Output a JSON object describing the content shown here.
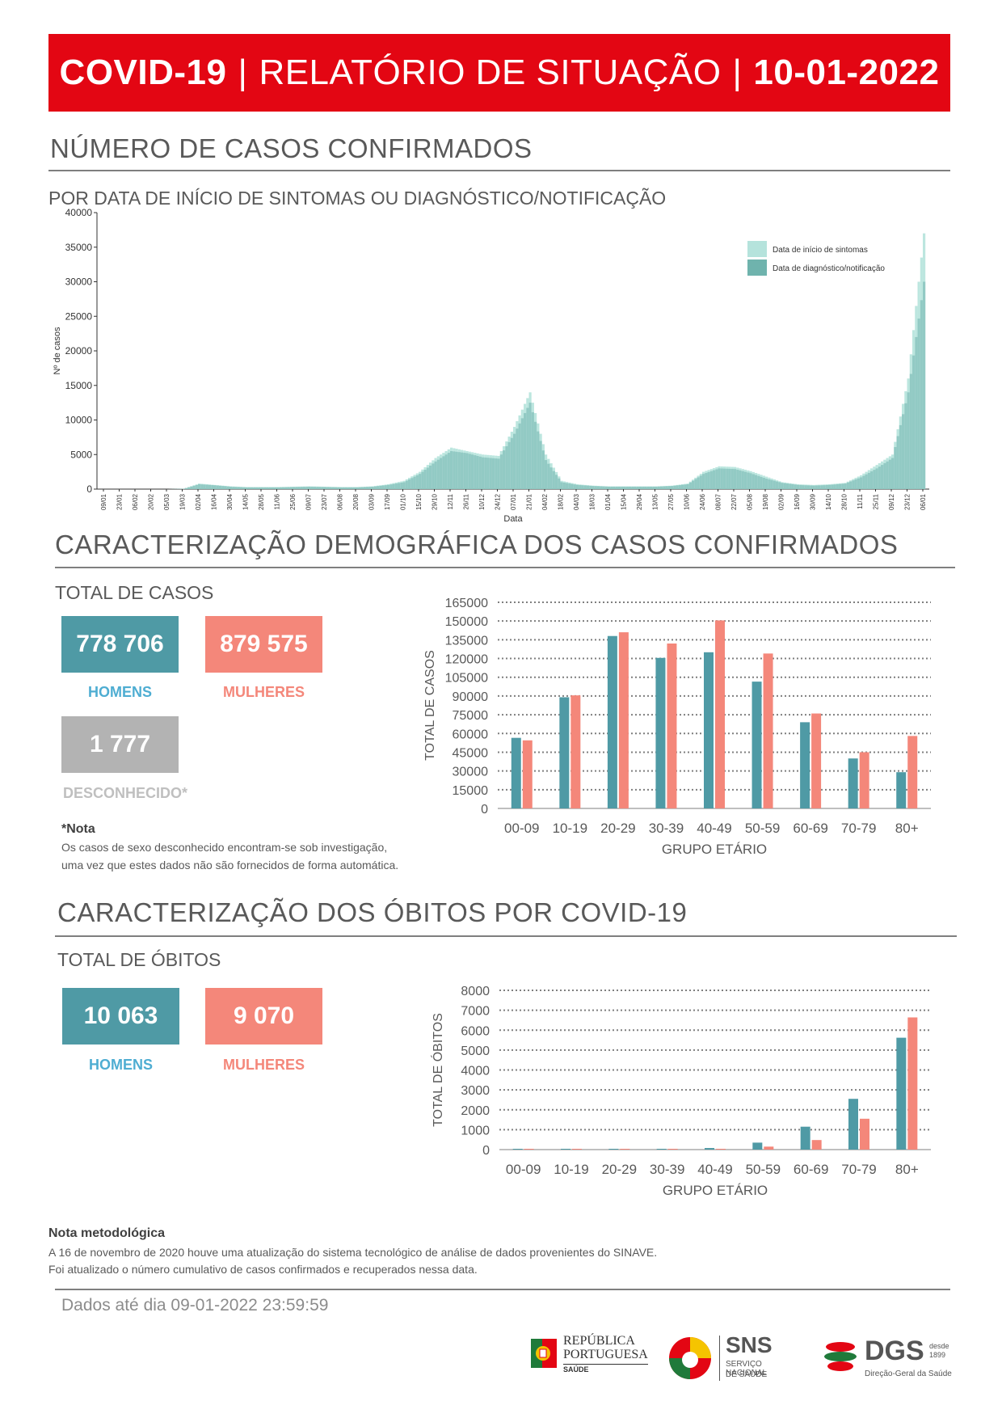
{
  "header": {
    "bold1": "COVID-19",
    "sep1": "|",
    "light": "RELATÓRIO DE SITUAÇÃO",
    "sep2": "|",
    "date": "10-01-2022"
  },
  "section1": {
    "title": "NÚMERO DE CASOS CONFIRMADOS",
    "subtitle": "POR DATA DE INÍCIO DE SINTOMAS OU DIAGNÓSTICO/NOTIFICAÇÃO"
  },
  "section2": {
    "title": "CARACTERIZAÇÃO DEMOGRÁFICA DOS CASOS CONFIRMADOS",
    "total_label": "TOTAL DE CASOS",
    "men_value": "778 706",
    "men_label": "HOMENS",
    "women_value": "879 575",
    "women_label": "MULHERES",
    "unknown_value": "1 777",
    "unknown_label": "DESCONHECIDO*",
    "note_title": "*Nota",
    "note_line1": "Os casos de sexo desconhecido encontram-se sob investigação,",
    "note_line2": "uma vez que estes dados não são fornecidos de forma automática."
  },
  "section3": {
    "title": "CARACTERIZAÇÃO DOS ÓBITOS POR COVID-19",
    "total_label": "TOTAL DE ÓBITOS",
    "men_value": "10 063",
    "men_label": "HOMENS",
    "women_value": "9 070",
    "women_label": "MULHERES"
  },
  "methodology": {
    "title": "Nota metodológica",
    "line1": "A 16 de novembro de 2020 houve uma atualização do sistema tecnológico de análise de dados provenientes do SINAVE.",
    "line2": "Foi atualizado o número cumulativo de casos confirmados e recuperados nessa data."
  },
  "footer": {
    "data_until": "Dados até dia 09-01-2022 23:59:59",
    "logo1_line1": "REPÚBLICA",
    "logo1_line2": "PORTUGUESA",
    "logo1_line3": "SAÚDE",
    "logo2_title": "SNS",
    "logo2_line1": "SERVIÇO NACIONAL",
    "logo2_line2": "DE SAÚDE",
    "logo3_title": "DGS",
    "logo3_small1": "desde",
    "logo3_small2": "1899",
    "logo3_sub": "Direção-Geral da Saúde"
  },
  "colors": {
    "red": "#e30613",
    "men": "#4f9aa5",
    "women": "#f4877a",
    "unknown": "#b3b3b3",
    "men_label": "#4eadd2",
    "symptoms": "#b5e3dc",
    "diagnosis": "#6fb3ad"
  },
  "chart_data": [
    {
      "type": "area",
      "xlabel": "Data",
      "ylabel": "Nº de casos",
      "ylim": [
        0,
        40000
      ],
      "yticks": [
        "0",
        "5000",
        "10000",
        "15000",
        "20000",
        "25000",
        "30000",
        "35000",
        "40000"
      ],
      "xticks": [
        "09/01",
        "23/01",
        "06/02",
        "20/02",
        "05/03",
        "19/03",
        "02/04",
        "16/04",
        "30/04",
        "14/05",
        "28/05",
        "11/06",
        "25/06",
        "09/07",
        "23/07",
        "06/08",
        "20/08",
        "03/09",
        "17/09",
        "01/10",
        "15/10",
        "29/10",
        "12/11",
        "26/11",
        "10/12",
        "24/12",
        "07/01",
        "21/01",
        "04/02",
        "18/02",
        "04/03",
        "18/03",
        "01/04",
        "15/04",
        "29/04",
        "13/05",
        "27/05",
        "10/06",
        "24/06",
        "08/07",
        "22/07",
        "05/08",
        "19/08",
        "02/09",
        "16/09",
        "30/09",
        "14/10",
        "28/10",
        "11/11",
        "25/11",
        "09/12",
        "23/12",
        "06/01"
      ],
      "legend_position": "top-right",
      "series": [
        {
          "name": "Data de início de sintomas",
          "values": [
            0,
            0,
            0,
            0,
            0,
            50,
            800,
            600,
            400,
            300,
            300,
            300,
            350,
            400,
            350,
            300,
            300,
            400,
            700,
            1200,
            2500,
            4500,
            6000,
            5500,
            5000,
            4800,
            9000,
            14000,
            5000,
            1200,
            700,
            500,
            400,
            400,
            400,
            400,
            500,
            800,
            2500,
            3300,
            3200,
            2600,
            1800,
            1000,
            700,
            600,
            700,
            900,
            2000,
            3500,
            5000,
            16000,
            37000
          ]
        },
        {
          "name": "Data de diagnóstico/notificação",
          "values": [
            0,
            0,
            0,
            0,
            0,
            40,
            700,
            550,
            350,
            250,
            250,
            250,
            300,
            350,
            300,
            250,
            250,
            350,
            600,
            1000,
            2200,
            4000,
            5500,
            5200,
            4600,
            4400,
            8000,
            12500,
            4200,
            1000,
            600,
            450,
            350,
            350,
            350,
            350,
            450,
            700,
            2200,
            3000,
            2900,
            2300,
            1500,
            900,
            600,
            500,
            600,
            800,
            1700,
            3000,
            4500,
            14000,
            30000
          ]
        }
      ]
    },
    {
      "type": "bar",
      "xlabel": "GRUPO ETÁRIO",
      "ylabel": "TOTAL DE CASOS",
      "ylim": [
        0,
        165000
      ],
      "yticks": [
        "0",
        "15000",
        "30000",
        "45000",
        "60000",
        "75000",
        "90000",
        "105000",
        "120000",
        "135000",
        "150000",
        "165000"
      ],
      "categories": [
        "00-09",
        "10-19",
        "20-29",
        "30-39",
        "40-49",
        "50-59",
        "60-69",
        "70-79",
        "80+"
      ],
      "series": [
        {
          "name": "HOMENS",
          "values": [
            56500,
            89000,
            138000,
            120500,
            125000,
            101500,
            69000,
            40000,
            29000
          ]
        },
        {
          "name": "MULHERES",
          "values": [
            54500,
            90500,
            141000,
            132000,
            150500,
            124000,
            76000,
            45000,
            58000
          ]
        }
      ]
    },
    {
      "type": "bar",
      "xlabel": "GRUPO ETÁRIO",
      "ylabel": "TOTAL DE ÓBITOS",
      "ylim": [
        0,
        8000
      ],
      "yticks": [
        "0",
        "1000",
        "2000",
        "3000",
        "4000",
        "5000",
        "6000",
        "7000",
        "8000"
      ],
      "categories": [
        "00-09",
        "10-19",
        "20-29",
        "30-39",
        "40-49",
        "50-59",
        "60-69",
        "70-79",
        "80+"
      ],
      "series": [
        {
          "name": "HOMENS",
          "values": [
            3,
            4,
            8,
            25,
            80,
            350,
            1150,
            2550,
            5620
          ]
        },
        {
          "name": "MULHERES",
          "values": [
            2,
            2,
            5,
            12,
            40,
            150,
            480,
            1550,
            6640
          ]
        }
      ]
    }
  ]
}
